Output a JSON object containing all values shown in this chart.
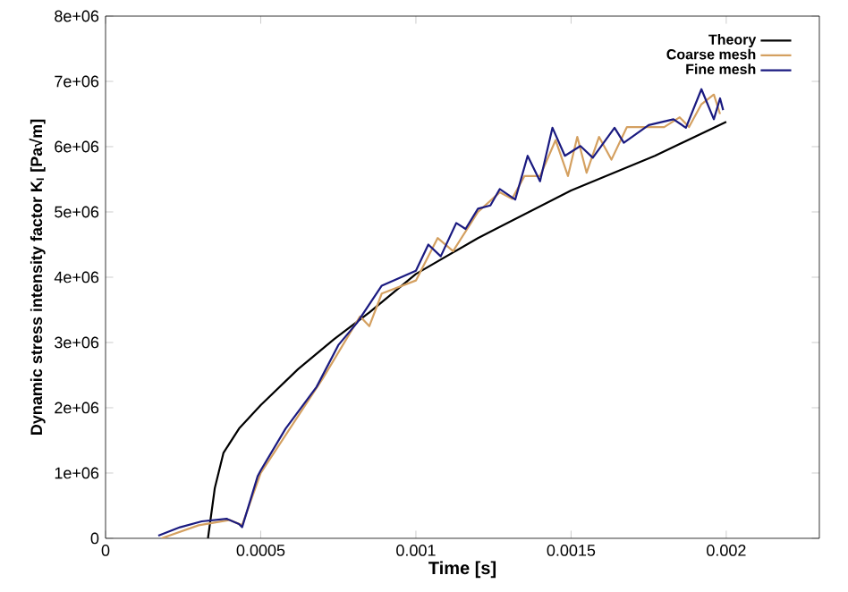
{
  "chart_data": {
    "type": "line",
    "xlabel": "Time [s]",
    "ylabel": "Dynamic stress intensity factor K$_{I}$ [Pa√m]",
    "xlim": [
      0,
      0.0023
    ],
    "ylim": [
      0,
      8000000
    ],
    "xticks": [
      0,
      0.0005,
      0.001,
      0.0015,
      0.002
    ],
    "yticks": [
      {
        "value": 0,
        "label": "0"
      },
      {
        "value": 1000000,
        "label": "1e+06"
      },
      {
        "value": 2000000,
        "label": "2e+06"
      },
      {
        "value": 3000000,
        "label": "3e+06"
      },
      {
        "value": 4000000,
        "label": "4e+06"
      },
      {
        "value": 5000000,
        "label": "5e+06"
      },
      {
        "value": 6000000,
        "label": "6e+06"
      },
      {
        "value": 7000000,
        "label": "7e+06"
      },
      {
        "value": 8000000,
        "label": "8e+06"
      }
    ],
    "legend": "top right",
    "grid": false,
    "marker": "none",
    "line_style": "solid",
    "series": [
      {
        "name": "Theory",
        "color": "#000000",
        "x": [
          0.00033,
          0.000352,
          0.00038,
          0.00043,
          0.0005,
          0.00062,
          0.000736,
          0.00085,
          0.001,
          0.0012,
          0.0015,
          0.00177,
          0.002
        ],
        "values": [
          0,
          770000,
          1310000,
          1680000,
          2040000,
          2590000,
          3050000,
          3460000,
          4050000,
          4600000,
          5330000,
          5860000,
          6380000
        ]
      },
      {
        "name": "Coarse mesh",
        "color": "#d4a060",
        "x": [
          0.00018,
          0.0003,
          0.0004,
          0.00044,
          0.0005,
          0.0007,
          0.00082,
          0.00085,
          0.00089,
          0.001,
          0.00107,
          0.00112,
          0.0012,
          0.00127,
          0.00131,
          0.00135,
          0.0014,
          0.00145,
          0.00149,
          0.00152,
          0.00155,
          0.00159,
          0.00163,
          0.00168,
          0.00175,
          0.0018,
          0.00185,
          0.00188,
          0.00192,
          0.00196,
          0.00198
        ],
        "values": [
          0,
          200000,
          280000,
          200000,
          1000000,
          2450000,
          3400000,
          3250000,
          3750000,
          3950000,
          4600000,
          4400000,
          5000000,
          5300000,
          5200000,
          5550000,
          5550000,
          6100000,
          5550000,
          6150000,
          5600000,
          6150000,
          5800000,
          6300000,
          6300000,
          6300000,
          6450000,
          6300000,
          6650000,
          6800000,
          6500000
        ]
      },
      {
        "name": "Fine mesh",
        "color": "#1a1a80",
        "x": [
          0.00017,
          0.00024,
          0.00031,
          0.00039,
          0.00043,
          0.00044,
          0.00049,
          0.0005,
          0.00058,
          0.00068,
          0.00075,
          0.00081,
          0.00089,
          0.001,
          0.00104,
          0.00108,
          0.00113,
          0.00116,
          0.0012,
          0.00124,
          0.00127,
          0.00132,
          0.00136,
          0.0014,
          0.00144,
          0.00148,
          0.00153,
          0.00157,
          0.00164,
          0.00167,
          0.00175,
          0.00183,
          0.00187,
          0.00192,
          0.00196,
          0.00198,
          0.00199
        ],
        "values": [
          40000,
          170000,
          260000,
          300000,
          220000,
          170000,
          950000,
          1040000,
          1680000,
          2320000,
          2960000,
          3300000,
          3870000,
          4100000,
          4500000,
          4320000,
          4830000,
          4740000,
          5050000,
          5100000,
          5350000,
          5190000,
          5860000,
          5470000,
          6290000,
          5860000,
          6010000,
          5830000,
          6290000,
          6060000,
          6330000,
          6420000,
          6290000,
          6880000,
          6420000,
          6740000,
          6560000
        ]
      }
    ]
  }
}
